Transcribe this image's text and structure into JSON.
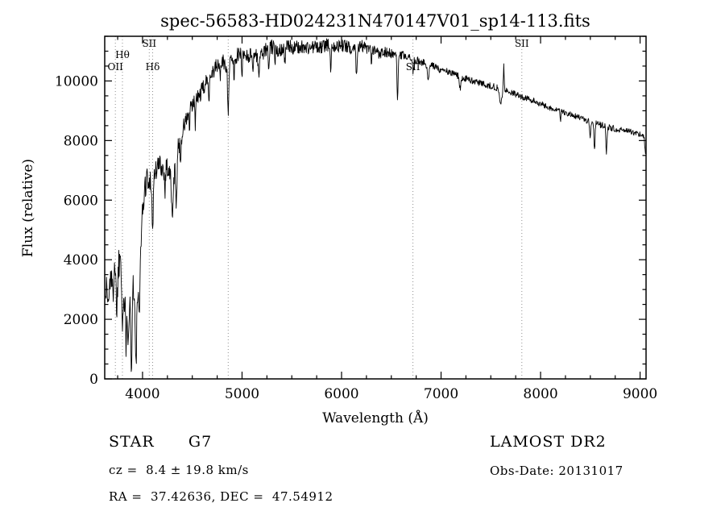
{
  "title": "spec-56583-HD024231N470147V01_sp14-113.fits",
  "annotations": {
    "class_label": "STAR      G7",
    "survey": "LAMOST DR2",
    "cz": "cz =  8.4 ± 19.8 km/s",
    "obs_date": "Obs-Date: 20131017",
    "coords": "RA =  37.42636, DEC =  47.54912"
  },
  "colors": {
    "trace": "#000000",
    "frame": "#000000",
    "dotted_line": "#8f8f8f",
    "background": "#ffffff",
    "text": "#000000"
  },
  "chart_data": {
    "type": "line",
    "title": "spec-56583-HD024231N470147V01_sp14-113.fits",
    "xlabel": "Wavelength (Å)",
    "ylabel": "Flux (relative)",
    "xlim": [
      3620,
      9060
    ],
    "ylim": [
      0,
      11500
    ],
    "x_ticks": [
      4000,
      5000,
      6000,
      7000,
      8000,
      9000
    ],
    "y_ticks": [
      0,
      2000,
      4000,
      6000,
      8000,
      10000
    ],
    "x_minor_step": 250,
    "y_minor_step": 500,
    "grid": false,
    "legend": null,
    "spectral_lines": [
      {
        "label": "OII",
        "wavelength": 3727,
        "row": 2
      },
      {
        "label": "Hθ",
        "wavelength": 3798,
        "row": 1
      },
      {
        "label": "SII",
        "wavelength": 4068,
        "row": 0
      },
      {
        "label": "Hδ",
        "wavelength": 4102,
        "row": 2
      },
      {
        "label": "",
        "wavelength": 4861,
        "row": 0
      },
      {
        "label": "SII",
        "wavelength": 6717,
        "row": 2
      },
      {
        "label": "SII",
        "wavelength": 7812,
        "row": 0
      }
    ],
    "flux_anchors": [
      [
        3630,
        3200
      ],
      [
        3660,
        2500
      ],
      [
        3680,
        3800
      ],
      [
        3700,
        2700
      ],
      [
        3720,
        4100
      ],
      [
        3740,
        2400
      ],
      [
        3760,
        3900
      ],
      [
        3780,
        4300
      ],
      [
        3800,
        3200
      ],
      [
        3820,
        2200
      ],
      [
        3840,
        3300
      ],
      [
        3855,
        1300
      ],
      [
        3870,
        2800
      ],
      [
        3885,
        1700
      ],
      [
        3900,
        3300
      ],
      [
        3920,
        2700
      ],
      [
        3940,
        2400
      ],
      [
        3960,
        3200
      ],
      [
        3980,
        4600
      ],
      [
        4000,
        5600
      ],
      [
        4020,
        6300
      ],
      [
        4040,
        6700
      ],
      [
        4060,
        6400
      ],
      [
        4080,
        6800
      ],
      [
        4100,
        6300
      ],
      [
        4120,
        6900
      ],
      [
        4150,
        7100
      ],
      [
        4180,
        7200
      ],
      [
        4210,
        7000
      ],
      [
        4240,
        7200
      ],
      [
        4270,
        6900
      ],
      [
        4300,
        6600
      ],
      [
        4330,
        7100
      ],
      [
        4360,
        7800
      ],
      [
        4390,
        8200
      ],
      [
        4420,
        8500
      ],
      [
        4450,
        8800
      ],
      [
        4490,
        9100
      ],
      [
        4530,
        9300
      ],
      [
        4570,
        9500
      ],
      [
        4610,
        9750
      ],
      [
        4650,
        10000
      ],
      [
        4700,
        10300
      ],
      [
        4750,
        10500
      ],
      [
        4800,
        10650
      ],
      [
        4861,
        10450
      ],
      [
        4900,
        10750
      ],
      [
        4950,
        10850
      ],
      [
        5000,
        10900
      ],
      [
        5060,
        10850
      ],
      [
        5120,
        10900
      ],
      [
        5180,
        10850
      ],
      [
        5240,
        11050
      ],
      [
        5300,
        11150
      ],
      [
        5360,
        11050
      ],
      [
        5420,
        11100
      ],
      [
        5480,
        11150
      ],
      [
        5540,
        11100
      ],
      [
        5600,
        11150
      ],
      [
        5660,
        11100
      ],
      [
        5720,
        11150
      ],
      [
        5780,
        11100
      ],
      [
        5840,
        11200
      ],
      [
        5900,
        11250
      ],
      [
        5960,
        11150
      ],
      [
        6020,
        11200
      ],
      [
        6080,
        11100
      ],
      [
        6140,
        11150
      ],
      [
        6200,
        11200
      ],
      [
        6260,
        11050
      ],
      [
        6320,
        11000
      ],
      [
        6380,
        10950
      ],
      [
        6440,
        11000
      ],
      [
        6500,
        10900
      ],
      [
        6560,
        10850
      ],
      [
        6620,
        10850
      ],
      [
        6680,
        10750
      ],
      [
        6740,
        10700
      ],
      [
        6800,
        10650
      ],
      [
        6860,
        10550
      ],
      [
        6920,
        10500
      ],
      [
        6980,
        10400
      ],
      [
        7040,
        10350
      ],
      [
        7100,
        10250
      ],
      [
        7160,
        10200
      ],
      [
        7220,
        10100
      ],
      [
        7280,
        10050
      ],
      [
        7340,
        9980
      ],
      [
        7400,
        9920
      ],
      [
        7460,
        9870
      ],
      [
        7520,
        9820
      ],
      [
        7580,
        9750
      ],
      [
        7640,
        9680
      ],
      [
        7700,
        9620
      ],
      [
        7760,
        9540
      ],
      [
        7820,
        9460
      ],
      [
        7880,
        9380
      ],
      [
        7940,
        9320
      ],
      [
        8000,
        9230
      ],
      [
        8060,
        9150
      ],
      [
        8120,
        9060
      ],
      [
        8180,
        9000
      ],
      [
        8240,
        8950
      ],
      [
        8300,
        8880
      ],
      [
        8360,
        8800
      ],
      [
        8420,
        8720
      ],
      [
        8480,
        8650
      ],
      [
        8540,
        8600
      ],
      [
        8600,
        8530
      ],
      [
        8660,
        8470
      ],
      [
        8720,
        8420
      ],
      [
        8780,
        8380
      ],
      [
        8840,
        8340
      ],
      [
        8900,
        8300
      ],
      [
        8960,
        8250
      ],
      [
        9010,
        8200
      ],
      [
        9040,
        8100
      ],
      [
        9055,
        7550
      ]
    ],
    "absorption_dips": [
      [
        3798,
        1500,
        5
      ],
      [
        3835,
        1700,
        5
      ],
      [
        3889,
        2000,
        5
      ],
      [
        3933,
        2200,
        6
      ],
      [
        3968,
        1900,
        6
      ],
      [
        4101,
        1400,
        6
      ],
      [
        4226,
        700,
        5
      ],
      [
        4300,
        1400,
        7
      ],
      [
        4340,
        1300,
        6
      ],
      [
        4383,
        800,
        5
      ],
      [
        4472,
        600,
        4
      ],
      [
        4530,
        700,
        4
      ],
      [
        4668,
        600,
        4
      ],
      [
        4780,
        500,
        4
      ],
      [
        4861,
        1400,
        6
      ],
      [
        4920,
        800,
        4
      ],
      [
        5000,
        600,
        4
      ],
      [
        5110,
        500,
        4
      ],
      [
        5167,
        800,
        5
      ],
      [
        5270,
        800,
        5
      ],
      [
        5330,
        600,
        4
      ],
      [
        5430,
        500,
        4
      ],
      [
        5890,
        800,
        6
      ],
      [
        6150,
        1000,
        5
      ],
      [
        6300,
        500,
        4
      ],
      [
        6563,
        1400,
        6
      ],
      [
        6720,
        400,
        5
      ],
      [
        6870,
        450,
        10
      ],
      [
        7190,
        400,
        8
      ],
      [
        7600,
        500,
        10
      ],
      [
        8200,
        400,
        4
      ],
      [
        8498,
        650,
        5
      ],
      [
        8542,
        950,
        5
      ],
      [
        8662,
        950,
        5
      ]
    ],
    "emission_spikes": [
      [
        7630,
        900,
        4
      ],
      [
        4046,
        400,
        3
      ]
    ],
    "noise_anchors": [
      [
        3630,
        650
      ],
      [
        3850,
        600
      ],
      [
        3980,
        450
      ],
      [
        4100,
        400
      ],
      [
        4300,
        350
      ],
      [
        4600,
        280
      ],
      [
        5000,
        250
      ],
      [
        5500,
        240
      ],
      [
        6000,
        220
      ],
      [
        6400,
        200
      ],
      [
        6600,
        150
      ],
      [
        7000,
        120
      ],
      [
        7400,
        110
      ],
      [
        7800,
        100
      ],
      [
        8200,
        95
      ],
      [
        8700,
        110
      ],
      [
        9055,
        80
      ]
    ],
    "noise_seed": 1337
  }
}
